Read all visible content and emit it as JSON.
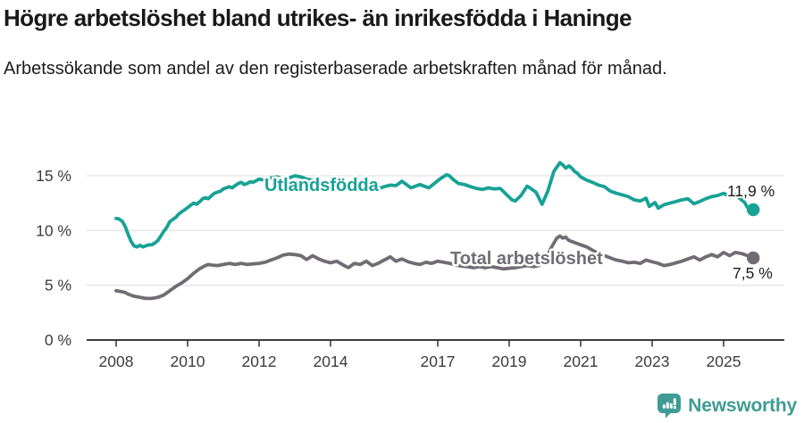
{
  "header": {
    "title": "Högre arbetslöshet bland utrikes- än inrikesfödda i Haninge",
    "subtitle": "Arbetssökande som andel av den registerbaserade arbetskraften månad för månad."
  },
  "chart_data": {
    "type": "line",
    "title": "Högre arbetslöshet bland utrikes- än inrikesfödda i Haninge",
    "unit": "%",
    "grid": "horizontal gridlines on",
    "legend_position": "labels on lines",
    "x_axis": {
      "tick_years": [
        2008,
        2010,
        2012,
        2014,
        2017,
        2019,
        2021,
        2023,
        2025
      ],
      "tick_labels": [
        "2008",
        "2010",
        "2012",
        "2014",
        "2017",
        "2019",
        "2021",
        "2023",
        "2025"
      ],
      "range_years": [
        2008,
        2025.83
      ]
    },
    "y_axis": {
      "tick_values": [
        0,
        5,
        10,
        15
      ],
      "tick_labels": [
        "0 %",
        "5 %",
        "10 %",
        "15 %"
      ],
      "range": [
        0,
        16.5
      ]
    },
    "series": [
      {
        "name": "Utlandsfödda",
        "color": "#17A295",
        "end_label": "11,9 %",
        "end_value": 11.9,
        "points": [
          [
            2008.0,
            11.1
          ],
          [
            2008.08,
            11.05
          ],
          [
            2008.17,
            10.85
          ],
          [
            2008.25,
            10.4
          ],
          [
            2008.33,
            9.7
          ],
          [
            2008.42,
            9.0
          ],
          [
            2008.5,
            8.6
          ],
          [
            2008.58,
            8.5
          ],
          [
            2008.67,
            8.65
          ],
          [
            2008.75,
            8.5
          ],
          [
            2008.83,
            8.6
          ],
          [
            2008.92,
            8.7
          ],
          [
            2009.0,
            8.7
          ],
          [
            2009.08,
            8.85
          ],
          [
            2009.17,
            9.1
          ],
          [
            2009.25,
            9.5
          ],
          [
            2009.33,
            9.9
          ],
          [
            2009.42,
            10.3
          ],
          [
            2009.5,
            10.8
          ],
          [
            2009.58,
            11.0
          ],
          [
            2009.67,
            11.2
          ],
          [
            2009.75,
            11.5
          ],
          [
            2009.83,
            11.7
          ],
          [
            2009.92,
            11.9
          ],
          [
            2010.0,
            12.1
          ],
          [
            2010.08,
            12.3
          ],
          [
            2010.17,
            12.5
          ],
          [
            2010.25,
            12.4
          ],
          [
            2010.33,
            12.6
          ],
          [
            2010.42,
            12.9
          ],
          [
            2010.5,
            13.0
          ],
          [
            2010.58,
            12.9
          ],
          [
            2010.67,
            13.2
          ],
          [
            2010.75,
            13.4
          ],
          [
            2010.83,
            13.5
          ],
          [
            2010.92,
            13.6
          ],
          [
            2011.0,
            13.8
          ],
          [
            2011.08,
            13.9
          ],
          [
            2011.17,
            14.0
          ],
          [
            2011.25,
            13.9
          ],
          [
            2011.33,
            14.1
          ],
          [
            2011.42,
            14.3
          ],
          [
            2011.5,
            14.4
          ],
          [
            2011.58,
            14.2
          ],
          [
            2011.67,
            14.3
          ],
          [
            2011.75,
            14.45
          ],
          [
            2011.83,
            14.4
          ],
          [
            2011.92,
            14.55
          ],
          [
            2012.0,
            14.7
          ],
          [
            2012.17,
            14.6
          ],
          [
            2012.33,
            14.8
          ],
          [
            2012.5,
            14.9
          ],
          [
            2012.67,
            14.7
          ],
          [
            2012.83,
            14.8
          ],
          [
            2013.0,
            15.0
          ],
          [
            2013.17,
            14.9
          ],
          [
            2013.33,
            14.7
          ],
          [
            2013.5,
            14.6
          ],
          [
            2013.67,
            14.4
          ],
          [
            2013.83,
            14.3
          ],
          [
            2014.0,
            14.5
          ],
          [
            2014.17,
            14.3
          ],
          [
            2014.33,
            13.6
          ],
          [
            2014.5,
            13.9
          ],
          [
            2014.67,
            13.7
          ],
          [
            2014.83,
            14.0
          ],
          [
            2015.0,
            14.1
          ],
          [
            2015.17,
            13.6
          ],
          [
            2015.33,
            13.8
          ],
          [
            2015.5,
            14.0
          ],
          [
            2015.67,
            14.15
          ],
          [
            2015.83,
            14.1
          ],
          [
            2016.0,
            14.5
          ],
          [
            2016.25,
            13.9
          ],
          [
            2016.5,
            14.2
          ],
          [
            2016.75,
            13.9
          ],
          [
            2017.08,
            14.75
          ],
          [
            2017.25,
            15.1
          ],
          [
            2017.33,
            15.0
          ],
          [
            2017.42,
            14.7
          ],
          [
            2017.58,
            14.3
          ],
          [
            2017.75,
            14.2
          ],
          [
            2017.92,
            14.0
          ],
          [
            2018.08,
            13.85
          ],
          [
            2018.25,
            13.75
          ],
          [
            2018.42,
            13.9
          ],
          [
            2018.58,
            13.8
          ],
          [
            2018.75,
            13.85
          ],
          [
            2018.92,
            13.3
          ],
          [
            2019.08,
            12.8
          ],
          [
            2019.17,
            12.7
          ],
          [
            2019.33,
            13.2
          ],
          [
            2019.5,
            14.05
          ],
          [
            2019.58,
            13.9
          ],
          [
            2019.75,
            13.5
          ],
          [
            2019.92,
            12.4
          ],
          [
            2020.08,
            13.6
          ],
          [
            2020.25,
            15.4
          ],
          [
            2020.42,
            16.2
          ],
          [
            2020.5,
            16.0
          ],
          [
            2020.58,
            15.7
          ],
          [
            2020.67,
            15.9
          ],
          [
            2020.75,
            15.7
          ],
          [
            2020.83,
            15.4
          ],
          [
            2020.92,
            15.2
          ],
          [
            2021.0,
            14.9
          ],
          [
            2021.17,
            14.6
          ],
          [
            2021.33,
            14.4
          ],
          [
            2021.5,
            14.15
          ],
          [
            2021.67,
            14.0
          ],
          [
            2021.83,
            13.6
          ],
          [
            2022.0,
            13.4
          ],
          [
            2022.17,
            13.25
          ],
          [
            2022.33,
            13.1
          ],
          [
            2022.5,
            12.8
          ],
          [
            2022.67,
            12.7
          ],
          [
            2022.83,
            12.95
          ],
          [
            2022.92,
            12.2
          ],
          [
            2023.08,
            12.55
          ],
          [
            2023.17,
            12.05
          ],
          [
            2023.33,
            12.35
          ],
          [
            2023.5,
            12.5
          ],
          [
            2023.67,
            12.65
          ],
          [
            2023.83,
            12.8
          ],
          [
            2024.0,
            12.9
          ],
          [
            2024.17,
            12.45
          ],
          [
            2024.33,
            12.65
          ],
          [
            2024.5,
            12.9
          ],
          [
            2024.67,
            13.1
          ],
          [
            2024.83,
            13.2
          ],
          [
            2025.0,
            13.4
          ],
          [
            2025.17,
            13.1
          ],
          [
            2025.33,
            13.3
          ],
          [
            2025.5,
            12.8
          ],
          [
            2025.58,
            12.6
          ],
          [
            2025.67,
            12.1
          ],
          [
            2025.75,
            12.0
          ],
          [
            2025.83,
            11.9
          ]
        ]
      },
      {
        "name": "Total arbetslöshet",
        "color": "#716C74",
        "end_label": "7,5 %",
        "end_value": 7.5,
        "points": [
          [
            2008.0,
            4.5
          ],
          [
            2008.17,
            4.4
          ],
          [
            2008.25,
            4.35
          ],
          [
            2008.33,
            4.2
          ],
          [
            2008.5,
            4.0
          ],
          [
            2008.67,
            3.9
          ],
          [
            2008.83,
            3.8
          ],
          [
            2009.0,
            3.8
          ],
          [
            2009.17,
            3.9
          ],
          [
            2009.33,
            4.1
          ],
          [
            2009.5,
            4.5
          ],
          [
            2009.67,
            4.9
          ],
          [
            2009.83,
            5.2
          ],
          [
            2010.0,
            5.6
          ],
          [
            2010.17,
            6.1
          ],
          [
            2010.33,
            6.5
          ],
          [
            2010.5,
            6.8
          ],
          [
            2010.58,
            6.9
          ],
          [
            2010.67,
            6.85
          ],
          [
            2010.83,
            6.8
          ],
          [
            2011.0,
            6.9
          ],
          [
            2011.17,
            7.0
          ],
          [
            2011.33,
            6.9
          ],
          [
            2011.5,
            7.0
          ],
          [
            2011.67,
            6.9
          ],
          [
            2011.83,
            6.95
          ],
          [
            2012.0,
            7.0
          ],
          [
            2012.17,
            7.1
          ],
          [
            2012.33,
            7.3
          ],
          [
            2012.5,
            7.5
          ],
          [
            2012.67,
            7.75
          ],
          [
            2012.83,
            7.85
          ],
          [
            2013.0,
            7.8
          ],
          [
            2013.17,
            7.7
          ],
          [
            2013.33,
            7.35
          ],
          [
            2013.5,
            7.7
          ],
          [
            2013.67,
            7.4
          ],
          [
            2013.83,
            7.2
          ],
          [
            2014.0,
            7.05
          ],
          [
            2014.17,
            7.2
          ],
          [
            2014.33,
            6.9
          ],
          [
            2014.5,
            6.6
          ],
          [
            2014.67,
            7.0
          ],
          [
            2014.83,
            6.9
          ],
          [
            2015.0,
            7.2
          ],
          [
            2015.17,
            6.8
          ],
          [
            2015.33,
            7.0
          ],
          [
            2015.5,
            7.3
          ],
          [
            2015.67,
            7.6
          ],
          [
            2015.83,
            7.2
          ],
          [
            2016.0,
            7.4
          ],
          [
            2016.17,
            7.15
          ],
          [
            2016.33,
            7.0
          ],
          [
            2016.5,
            6.9
          ],
          [
            2016.67,
            7.1
          ],
          [
            2016.83,
            7.0
          ],
          [
            2017.0,
            7.2
          ],
          [
            2017.17,
            7.1
          ],
          [
            2017.33,
            7.0
          ],
          [
            2017.5,
            6.85
          ],
          [
            2017.67,
            6.75
          ],
          [
            2017.83,
            6.7
          ],
          [
            2018.0,
            6.6
          ],
          [
            2018.17,
            6.7
          ],
          [
            2018.33,
            6.6
          ],
          [
            2018.5,
            6.7
          ],
          [
            2018.67,
            6.6
          ],
          [
            2018.83,
            6.5
          ],
          [
            2019.0,
            6.55
          ],
          [
            2019.17,
            6.6
          ],
          [
            2019.33,
            6.7
          ],
          [
            2019.5,
            6.8
          ],
          [
            2019.67,
            6.7
          ],
          [
            2019.83,
            6.8
          ],
          [
            2020.0,
            7.2
          ],
          [
            2020.17,
            8.4
          ],
          [
            2020.33,
            9.3
          ],
          [
            2020.42,
            9.5
          ],
          [
            2020.5,
            9.3
          ],
          [
            2020.58,
            9.4
          ],
          [
            2020.67,
            9.1
          ],
          [
            2020.83,
            8.9
          ],
          [
            2021.0,
            8.7
          ],
          [
            2021.17,
            8.5
          ],
          [
            2021.33,
            8.2
          ],
          [
            2021.5,
            7.9
          ],
          [
            2021.67,
            7.7
          ],
          [
            2021.83,
            7.5
          ],
          [
            2022.0,
            7.3
          ],
          [
            2022.17,
            7.2
          ],
          [
            2022.33,
            7.05
          ],
          [
            2022.5,
            7.1
          ],
          [
            2022.67,
            7.0
          ],
          [
            2022.83,
            7.3
          ],
          [
            2023.0,
            7.15
          ],
          [
            2023.17,
            7.0
          ],
          [
            2023.33,
            6.8
          ],
          [
            2023.5,
            6.9
          ],
          [
            2023.67,
            7.05
          ],
          [
            2023.83,
            7.2
          ],
          [
            2024.0,
            7.4
          ],
          [
            2024.17,
            7.6
          ],
          [
            2024.33,
            7.3
          ],
          [
            2024.5,
            7.6
          ],
          [
            2024.67,
            7.8
          ],
          [
            2024.83,
            7.6
          ],
          [
            2025.0,
            8.0
          ],
          [
            2025.17,
            7.7
          ],
          [
            2025.33,
            8.0
          ],
          [
            2025.5,
            7.9
          ],
          [
            2025.67,
            7.7
          ],
          [
            2025.83,
            7.5
          ]
        ]
      }
    ]
  },
  "branding": {
    "logo_text": "Newsworthy",
    "logo_color": "#3E9C94"
  }
}
